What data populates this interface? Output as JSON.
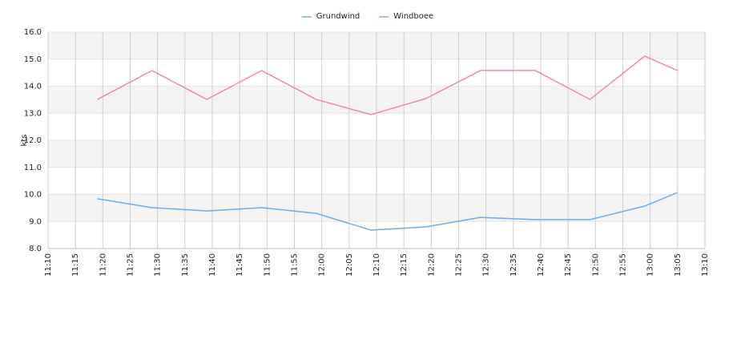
{
  "chart_data": {
    "type": "line",
    "y_label": "kts",
    "x": [
      "11:19",
      "11:29",
      "11:39",
      "11:49",
      "11:59",
      "12:09",
      "12:19",
      "12:29",
      "12:39",
      "12:49",
      "12:59",
      "13:05"
    ],
    "series": [
      {
        "name": "Grundwind",
        "color": "#6aaee8",
        "values": [
          9.84,
          9.51,
          9.39,
          9.51,
          9.3,
          8.68,
          8.8,
          9.15,
          9.07,
          9.07,
          9.57,
          10.07
        ]
      },
      {
        "name": "Windboee",
        "color": "#ee88bb",
        "values": [
          13.51,
          14.58,
          13.51,
          14.58,
          13.51,
          12.95,
          13.54,
          14.58,
          14.58,
          13.51,
          15.11,
          14.58
        ]
      }
    ],
    "xlim": [
      "11:10",
      "13:10"
    ],
    "xticks": [
      "11:10",
      "11:15",
      "11:20",
      "11:25",
      "11:30",
      "11:35",
      "11:40",
      "11:45",
      "11:50",
      "11:55",
      "12:00",
      "12:05",
      "12:10",
      "12:15",
      "12:20",
      "12:25",
      "12:30",
      "12:35",
      "12:40",
      "12:45",
      "12:50",
      "12:55",
      "13:00",
      "13:05",
      "13:10"
    ],
    "ylim": [
      8,
      16
    ],
    "yticks": [
      {
        "value": 8,
        "label": "8.0"
      },
      {
        "value": 9,
        "label": "9.0"
      },
      {
        "value": 10,
        "label": "10.0"
      },
      {
        "value": 11,
        "label": "11.0"
      },
      {
        "value": 12,
        "label": "12.0"
      },
      {
        "value": 13,
        "label": "13.0"
      },
      {
        "value": 14,
        "label": "14.0"
      },
      {
        "value": 15,
        "label": "15.0"
      },
      {
        "value": 16,
        "label": "16.0"
      }
    ],
    "grid": true,
    "legend": "top"
  }
}
